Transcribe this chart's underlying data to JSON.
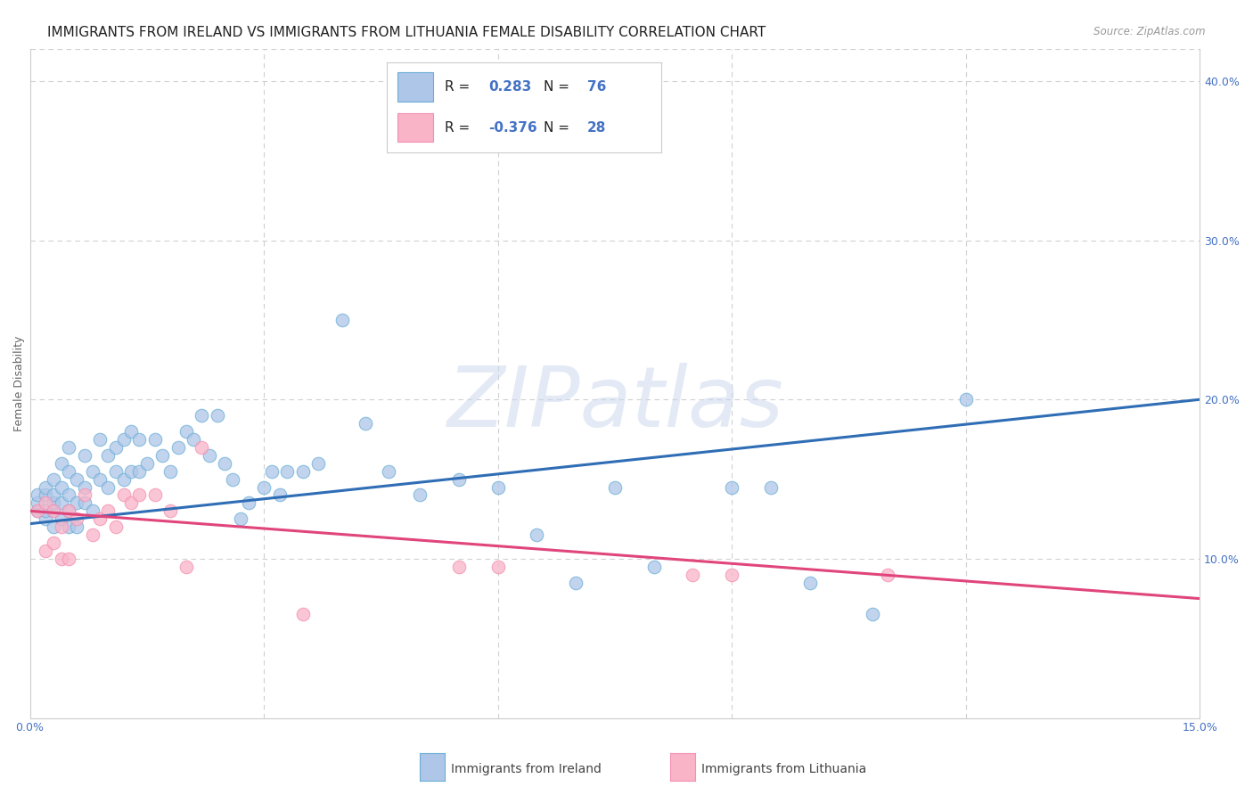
{
  "title": "IMMIGRANTS FROM IRELAND VS IMMIGRANTS FROM LITHUANIA FEMALE DISABILITY CORRELATION CHART",
  "source": "Source: ZipAtlas.com",
  "ylabel": "Female Disability",
  "xlim": [
    0.0,
    0.15
  ],
  "ylim": [
    0.0,
    0.42
  ],
  "ireland_color": "#aec6e8",
  "ireland_edge_color": "#6baed6",
  "ireland_line_color": "#2f6db5",
  "lithuania_color": "#f9b4c8",
  "lithuania_edge_color": "#f48fb1",
  "lithuania_line_color": "#e0457b",
  "ireland_R": 0.283,
  "ireland_N": 76,
  "lithuania_R": -0.376,
  "lithuania_N": 28,
  "ireland_trend_y0": 0.122,
  "ireland_trend_y1": 0.2,
  "lithuania_trend_y0": 0.13,
  "lithuania_trend_y1": 0.075,
  "ireland_scatter_x": [
    0.001,
    0.001,
    0.001,
    0.002,
    0.002,
    0.002,
    0.002,
    0.003,
    0.003,
    0.003,
    0.003,
    0.003,
    0.004,
    0.004,
    0.004,
    0.004,
    0.005,
    0.005,
    0.005,
    0.005,
    0.005,
    0.006,
    0.006,
    0.006,
    0.007,
    0.007,
    0.007,
    0.008,
    0.008,
    0.009,
    0.009,
    0.01,
    0.01,
    0.011,
    0.011,
    0.012,
    0.012,
    0.013,
    0.013,
    0.014,
    0.014,
    0.015,
    0.016,
    0.017,
    0.018,
    0.019,
    0.02,
    0.021,
    0.022,
    0.023,
    0.024,
    0.025,
    0.026,
    0.027,
    0.028,
    0.03,
    0.031,
    0.032,
    0.033,
    0.035,
    0.037,
    0.04,
    0.043,
    0.046,
    0.05,
    0.055,
    0.06,
    0.065,
    0.07,
    0.075,
    0.08,
    0.09,
    0.095,
    0.1,
    0.108,
    0.12
  ],
  "ireland_scatter_y": [
    0.13,
    0.135,
    0.14,
    0.125,
    0.13,
    0.14,
    0.145,
    0.12,
    0.13,
    0.135,
    0.14,
    0.15,
    0.125,
    0.135,
    0.145,
    0.16,
    0.12,
    0.13,
    0.14,
    0.155,
    0.17,
    0.12,
    0.135,
    0.15,
    0.135,
    0.145,
    0.165,
    0.13,
    0.155,
    0.15,
    0.175,
    0.145,
    0.165,
    0.155,
    0.17,
    0.15,
    0.175,
    0.155,
    0.18,
    0.155,
    0.175,
    0.16,
    0.175,
    0.165,
    0.155,
    0.17,
    0.18,
    0.175,
    0.19,
    0.165,
    0.19,
    0.16,
    0.15,
    0.125,
    0.135,
    0.145,
    0.155,
    0.14,
    0.155,
    0.155,
    0.16,
    0.25,
    0.185,
    0.155,
    0.14,
    0.15,
    0.145,
    0.115,
    0.085,
    0.145,
    0.095,
    0.145,
    0.145,
    0.085,
    0.065,
    0.2
  ],
  "lithuania_scatter_x": [
    0.001,
    0.002,
    0.002,
    0.003,
    0.003,
    0.004,
    0.004,
    0.005,
    0.005,
    0.006,
    0.007,
    0.008,
    0.009,
    0.01,
    0.011,
    0.012,
    0.013,
    0.014,
    0.016,
    0.018,
    0.02,
    0.022,
    0.035,
    0.055,
    0.06,
    0.085,
    0.09,
    0.11
  ],
  "lithuania_scatter_y": [
    0.13,
    0.135,
    0.105,
    0.11,
    0.13,
    0.1,
    0.12,
    0.13,
    0.1,
    0.125,
    0.14,
    0.115,
    0.125,
    0.13,
    0.12,
    0.14,
    0.135,
    0.14,
    0.14,
    0.13,
    0.095,
    0.17,
    0.065,
    0.095,
    0.095,
    0.09,
    0.09,
    0.09
  ],
  "watermark_text": "ZIPatlas",
  "background_color": "#ffffff",
  "grid_color": "#d0d0d0",
  "tick_color": "#4472c4",
  "title_fontsize": 11,
  "axis_label_fontsize": 9,
  "tick_fontsize": 9,
  "legend_value_color": "#4472c4",
  "legend_text_color": "#222222"
}
